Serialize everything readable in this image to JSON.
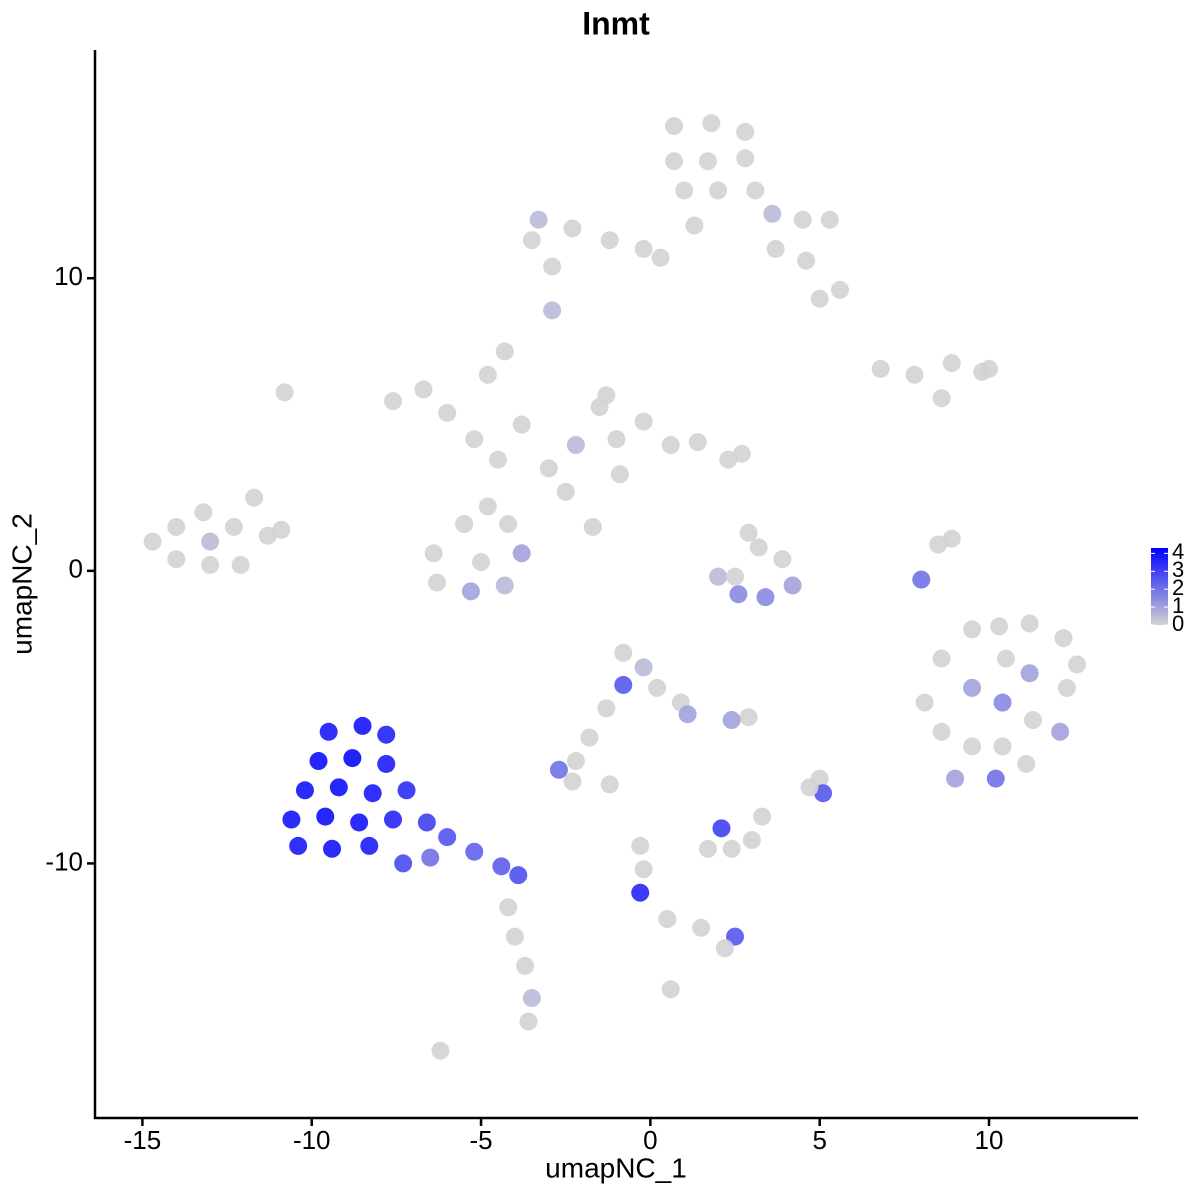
{
  "chart_data": {
    "type": "scatter",
    "title": "Inmt",
    "x_label": "umapNC_1",
    "y_label": "umapNC_2",
    "xlim": [
      -16.4,
      14.4
    ],
    "ylim": [
      -18.7,
      17.8
    ],
    "xticks": [
      -15,
      -10,
      -5,
      0,
      5,
      10
    ],
    "yticks": [
      -10,
      0,
      10
    ],
    "color_scale": {
      "low": "#d3d3d3",
      "high": "#0000ff",
      "limits": [
        0,
        4.3
      ],
      "ticks": [
        0,
        1,
        2,
        3,
        4
      ]
    },
    "x": [
      -9.5,
      -8.5,
      -7.8,
      -9.8,
      -8.8,
      -7.8,
      -10.2,
      -9.2,
      -8.2,
      -7.2,
      -10.6,
      -9.6,
      -8.6,
      -7.6,
      -6.6,
      -10.4,
      -9.4,
      -8.3,
      -6,
      -5.2,
      -4.4,
      -3.9,
      -7.3,
      -6.5,
      -4.2,
      -4,
      -3.7,
      -3.5,
      -3.6,
      -6.2,
      -0.8,
      -0.2,
      -0.8,
      0.2,
      0.9,
      1.1,
      -1.3,
      -1.8,
      -2.2,
      -2.7,
      -2.3,
      -1.2,
      2.9,
      2.4,
      2.1,
      2.4,
      1.7,
      3.0,
      3.3,
      5.0,
      5.1,
      4.7,
      -0.3,
      -0.2,
      -0.3,
      0.5,
      1.5,
      2.5,
      2.2,
      0.6,
      8.1,
      8.6,
      8.6,
      9.5,
      9.5,
      9.5,
      9,
      10.3,
      10.5,
      10.4,
      10.4,
      10.2,
      11.2,
      11.2,
      11.3,
      11.1,
      12.2,
      12.3,
      12.1,
      12.6,
      8.5,
      8.0,
      8.9,
      2.0,
      2.6,
      3.4,
      4.2,
      3.2,
      2.9,
      3.9,
      2.5,
      -6.4,
      -5.5,
      -4.2,
      -3.8,
      -6.3,
      -5.3,
      -4.3,
      -5,
      -7.6,
      -6.7,
      -6.0,
      -5.2,
      -4.5,
      -4.8,
      -4.3,
      -3.8,
      -3.0,
      -2.5,
      -1.7,
      -1.5,
      -1.0,
      -1.3,
      -0.2,
      0.6,
      1.4,
      2.3,
      2.7,
      -2.2,
      -0.9,
      -4.8,
      -14.7,
      -14.0,
      -14.0,
      -13.2,
      -13.0,
      -13.0,
      -12.3,
      -12.1,
      -11.3,
      -10.9,
      -11.7,
      -10.8,
      0.7,
      1.8,
      2.8,
      0.7,
      1.7,
      2.8,
      1.0,
      2.0,
      3.1,
      1.3,
      3.6,
      4.5,
      5.3,
      3.7,
      4.6,
      5.6,
      5.0,
      -0.2,
      -1.2,
      -2.3,
      -3.3,
      -3.5,
      -2.9,
      0.3,
      -2.9,
      6.8,
      7.8,
      8.9,
      9.8,
      10.0,
      8.6
    ],
    "y": [
      -5.5,
      -5.3,
      -5.6,
      -6.5,
      -6.4,
      -6.6,
      -7.5,
      -7.4,
      -7.6,
      -7.5,
      -8.5,
      -8.4,
      -8.6,
      -8.5,
      -8.6,
      -9.4,
      -9.5,
      -9.4,
      -9.1,
      -9.6,
      -10.1,
      -10.4,
      -10,
      -9.8,
      -11.5,
      -12.5,
      -13.5,
      -14.6,
      -15.4,
      -16.4,
      -2.8,
      -3.3,
      -3.9,
      -4.0,
      -4.5,
      -4.9,
      -4.7,
      -5.7,
      -6.5,
      -6.8,
      -7.2,
      -7.3,
      -5.0,
      -5.1,
      -8.8,
      -9.5,
      -9.5,
      -9.2,
      -8.4,
      -7.1,
      -7.6,
      -7.4,
      -9.4,
      -10.2,
      -11.0,
      -11.9,
      -12.2,
      -12.5,
      -12.9,
      -14.3,
      -4.5,
      -5.5,
      -3.0,
      -2.0,
      -4.0,
      -6.0,
      -7.1,
      -1.9,
      -3.0,
      -4.5,
      -6,
      -7.1,
      -1.8,
      -3.5,
      -5.1,
      -6.6,
      -2.3,
      -4.0,
      -5.5,
      -3.2,
      0.9,
      -0.3,
      1.1,
      -0.2,
      -0.8,
      -0.9,
      -0.5,
      0.8,
      1.3,
      0.4,
      -0.2,
      0.6,
      1.6,
      1.6,
      0.6,
      -0.4,
      -0.7,
      -0.5,
      0.3,
      5.8,
      6.2,
      5.4,
      4.5,
      3.8,
      6.7,
      7.5,
      5.0,
      3.5,
      2.7,
      1.5,
      5.6,
      4.5,
      6.0,
      5.1,
      4.3,
      4.4,
      3.8,
      4.0,
      4.3,
      3.3,
      2.2,
      1.0,
      1.5,
      0.4,
      2.0,
      1.0,
      0.2,
      1.5,
      0.2,
      1.2,
      1.4,
      2.5,
      6.1,
      15.2,
      15.3,
      15.0,
      14.0,
      14.0,
      14.1,
      13.0,
      13.0,
      13.0,
      11.8,
      12.2,
      12.0,
      12.0,
      11.0,
      10.6,
      9.6,
      9.3,
      11.0,
      11.3,
      11.7,
      12.0,
      11.3,
      10.4,
      10.7,
      8.9,
      6.9,
      6.7,
      7.1,
      6.8,
      6.9,
      5.9
    ],
    "values": [
      3.8,
      3.9,
      3.6,
      4,
      4.1,
      3.7,
      3.9,
      4,
      3.8,
      3.4,
      3.9,
      4,
      3.9,
      3.5,
      3,
      3.8,
      3.9,
      3.7,
      2.6,
      2.3,
      2.4,
      2.7,
      2.8,
      2,
      0,
      0,
      0,
      0.5,
      0,
      0,
      0,
      0.5,
      2.5,
      0,
      0,
      1,
      0,
      0,
      0,
      2,
      0,
      0,
      0,
      1,
      3,
      0,
      0,
      0,
      0,
      0,
      2.5,
      0,
      0,
      0,
      3.5,
      0,
      0,
      2.5,
      0,
      0,
      0,
      0,
      0,
      0,
      1,
      0,
      1,
      0,
      0,
      1.5,
      0,
      2,
      0,
      1,
      0,
      0,
      0,
      0,
      1,
      0,
      0,
      2,
      0,
      0.5,
      1.5,
      1.5,
      1,
      0,
      0,
      0,
      0,
      0,
      0,
      0,
      1,
      0,
      1,
      0.5,
      0,
      0,
      0,
      0,
      0,
      0,
      0,
      0,
      0,
      0,
      0,
      0,
      0,
      0,
      0,
      0,
      0,
      0,
      0,
      0,
      0.5,
      0,
      0,
      0,
      0,
      0,
      0,
      0.5,
      0,
      0,
      0,
      0,
      0,
      0,
      0,
      0,
      0,
      0,
      0,
      0,
      0,
      0,
      0,
      0,
      0,
      0.5,
      0,
      0,
      0,
      0,
      0,
      0,
      0,
      0,
      0,
      0.5,
      0,
      0,
      0,
      0.5,
      0,
      0,
      0,
      0,
      0,
      0
    ]
  }
}
